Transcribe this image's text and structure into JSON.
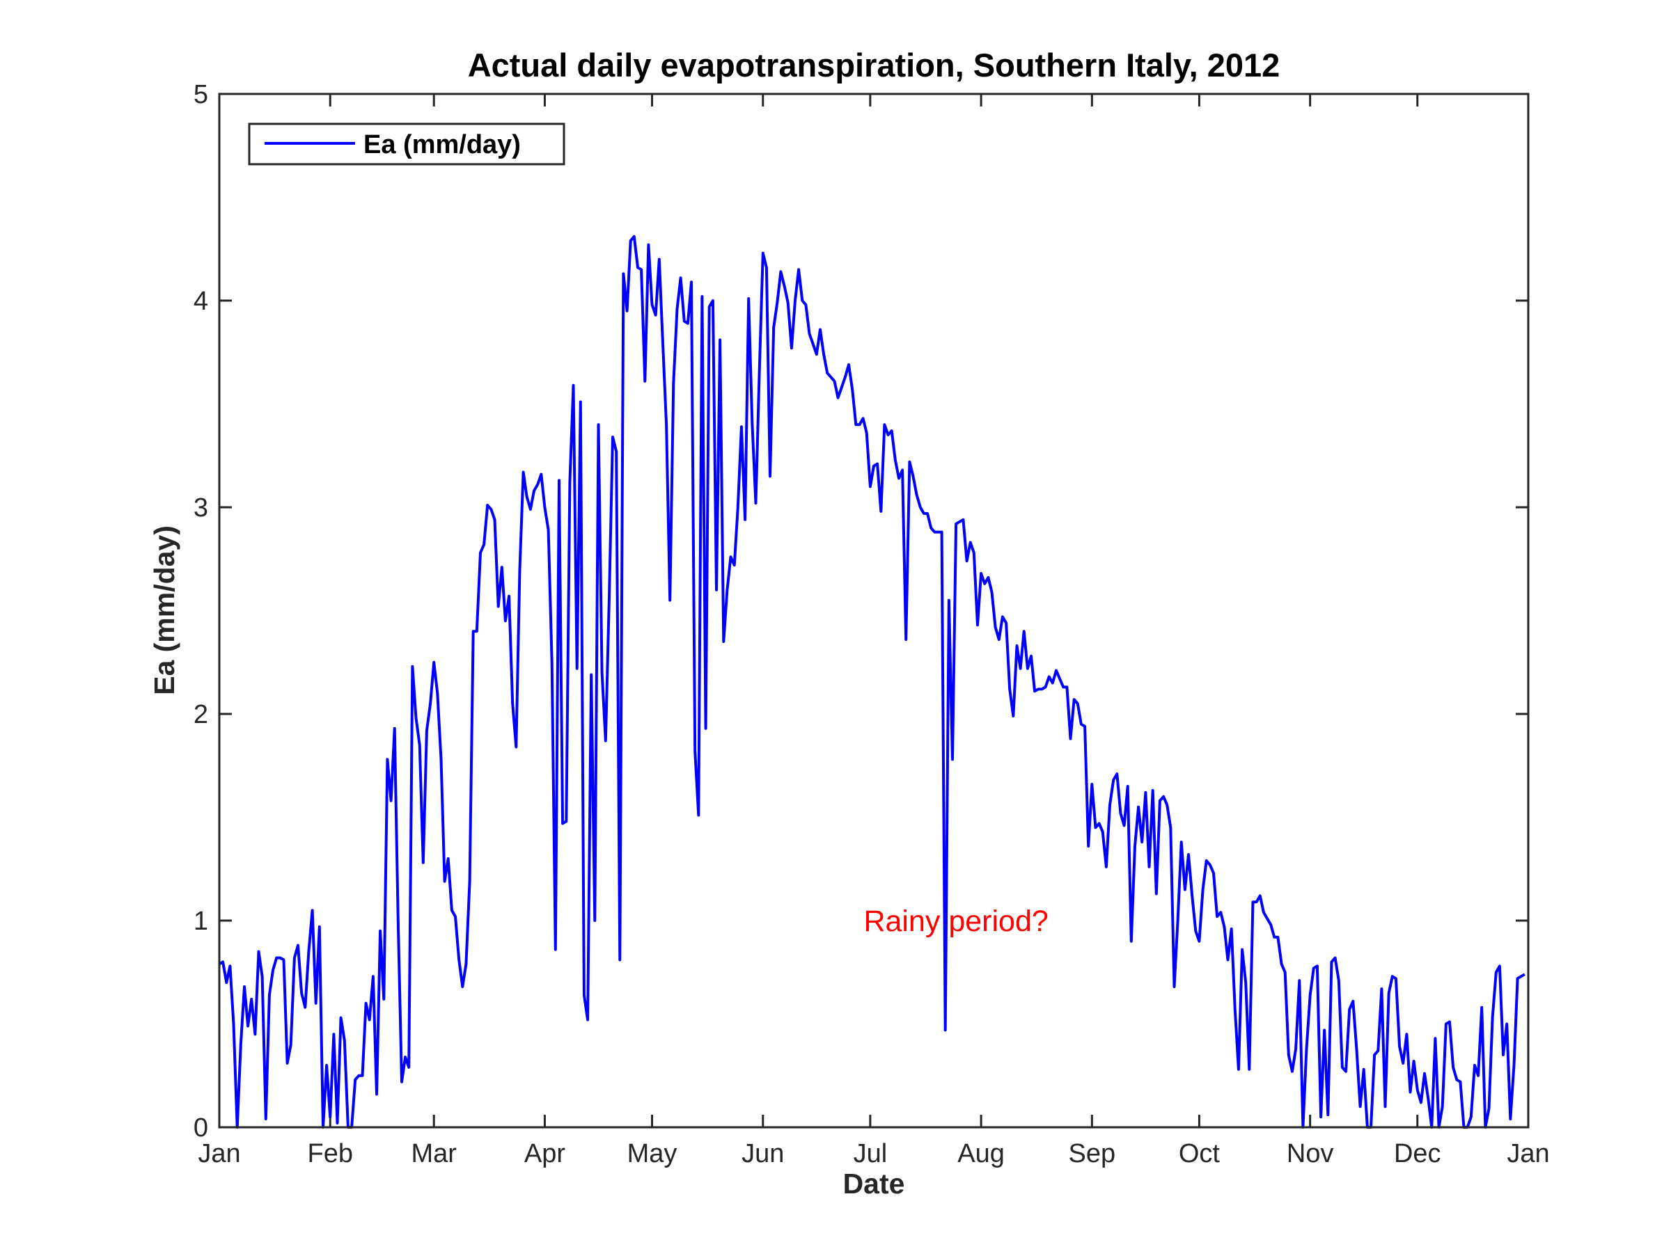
{
  "chart_data": {
    "type": "line",
    "title": "Actual daily evapotranspiration, Southern Italy, 2012",
    "xlabel": "Date",
    "ylabel": "Ea (mm/day)",
    "x_ticks": [
      "Jan",
      "Feb",
      "Mar",
      "Apr",
      "May",
      "Jun",
      "Jul",
      "Aug",
      "Sep",
      "Oct",
      "Nov",
      "Dec",
      "Jan"
    ],
    "x_tick_dates": [
      "2012-01-01",
      "2012-02-01",
      "2012-03-01",
      "2012-04-01",
      "2012-05-01",
      "2012-06-01",
      "2012-07-01",
      "2012-08-01",
      "2012-09-01",
      "2012-10-01",
      "2012-11-01",
      "2012-12-01",
      "2013-01-01"
    ],
    "xlim": [
      "2012-01-01",
      "2013-01-01"
    ],
    "y_ticks": [
      "0",
      "1",
      "2",
      "3",
      "4",
      "5"
    ],
    "y_tick_values": [
      0,
      1,
      2,
      3,
      4,
      5
    ],
    "ylim": [
      0,
      5
    ],
    "grid": false,
    "legend_position": "top-left",
    "series": [
      {
        "name": "Ea (mm/day)",
        "color": "#0000ff",
        "x_start": "2012-01-01",
        "x_step": "1 day",
        "values": [
          0.79,
          0.8,
          0.7,
          0.78,
          0.5,
          0.0,
          0.4,
          0.68,
          0.49,
          0.62,
          0.45,
          0.85,
          0.73,
          0.04,
          0.64,
          0.76,
          0.82,
          0.82,
          0.81,
          0.31,
          0.4,
          0.82,
          0.88,
          0.65,
          0.58,
          0.85,
          1.05,
          0.6,
          0.97,
          0.0,
          0.3,
          0.05,
          0.45,
          0.02,
          0.53,
          0.42,
          0.0,
          0.0,
          0.23,
          0.25,
          0.25,
          0.6,
          0.52,
          0.73,
          0.16,
          0.95,
          0.62,
          1.78,
          1.58,
          1.93,
          1.0,
          0.22,
          0.34,
          0.29,
          2.23,
          1.98,
          1.85,
          1.28,
          1.92,
          2.05,
          2.25,
          2.1,
          1.78,
          1.19,
          1.3,
          1.05,
          1.02,
          0.81,
          0.68,
          0.79,
          1.19,
          2.4,
          2.4,
          2.78,
          2.82,
          3.01,
          2.99,
          2.94,
          2.52,
          2.71,
          2.45,
          2.57,
          2.05,
          1.84,
          2.7,
          3.17,
          3.05,
          2.99,
          3.08,
          3.11,
          3.16,
          3.0,
          2.89,
          2.25,
          0.86,
          3.13,
          1.47,
          1.48,
          3.12,
          3.59,
          2.22,
          3.51,
          0.64,
          0.52,
          2.19,
          1.0,
          3.4,
          2.2,
          1.87,
          2.55,
          3.34,
          3.27,
          0.81,
          4.13,
          3.95,
          4.29,
          4.31,
          4.16,
          4.15,
          3.61,
          4.27,
          3.98,
          3.93,
          4.2,
          3.8,
          3.4,
          2.55,
          3.6,
          3.96,
          4.11,
          3.9,
          3.89,
          4.09,
          1.82,
          1.51,
          4.02,
          1.93,
          3.97,
          4.0,
          2.6,
          3.81,
          2.35,
          2.6,
          2.76,
          2.72,
          3.0,
          3.39,
          2.94,
          4.01,
          3.4,
          3.02,
          3.65,
          4.23,
          4.16,
          3.15,
          3.87,
          3.99,
          4.14,
          4.07,
          3.99,
          3.77,
          4.0,
          4.15,
          4.0,
          3.98,
          3.84,
          3.79,
          3.74,
          3.86,
          3.74,
          3.65,
          3.63,
          3.61,
          3.53,
          3.58,
          3.63,
          3.69,
          3.57,
          3.4,
          3.4,
          3.43,
          3.36,
          3.1,
          3.2,
          3.21,
          2.98,
          3.4,
          3.35,
          3.37,
          3.23,
          3.14,
          3.18,
          2.36,
          3.22,
          3.15,
          3.06,
          3.0,
          2.97,
          2.97,
          2.9,
          2.88,
          2.88,
          2.88,
          0.47,
          2.55,
          1.78,
          2.92,
          2.93,
          2.94,
          2.74,
          2.83,
          2.78,
          2.43,
          2.68,
          2.63,
          2.66,
          2.59,
          2.42,
          2.36,
          2.47,
          2.44,
          2.12,
          1.99,
          2.33,
          2.22,
          2.4,
          2.22,
          2.28,
          2.11,
          2.12,
          2.12,
          2.13,
          2.18,
          2.15,
          2.21,
          2.17,
          2.13,
          2.13,
          1.88,
          2.07,
          2.05,
          1.95,
          1.94,
          1.36,
          1.66,
          1.45,
          1.47,
          1.43,
          1.26,
          1.56,
          1.68,
          1.71,
          1.52,
          1.46,
          1.65,
          0.9,
          1.36,
          1.55,
          1.38,
          1.62,
          1.26,
          1.63,
          1.13,
          1.58,
          1.6,
          1.56,
          1.45,
          0.68,
          1.0,
          1.38,
          1.15,
          1.32,
          1.12,
          0.95,
          0.9,
          1.15,
          1.29,
          1.27,
          1.23,
          1.02,
          1.04,
          0.97,
          0.81,
          0.96,
          0.57,
          0.28,
          0.86,
          0.7,
          0.28,
          1.09,
          1.09,
          1.12,
          1.04,
          1.01,
          0.98,
          0.92,
          0.92,
          0.79,
          0.75,
          0.35,
          0.27,
          0.38,
          0.71,
          0.0,
          0.38,
          0.64,
          0.77,
          0.78,
          0.05,
          0.47,
          0.06,
          0.8,
          0.82,
          0.71,
          0.29,
          0.27,
          0.57,
          0.61,
          0.38,
          0.1,
          0.28,
          0.0,
          0.0,
          0.35,
          0.37,
          0.67,
          0.1,
          0.65,
          0.73,
          0.72,
          0.39,
          0.31,
          0.45,
          0.17,
          0.32,
          0.18,
          0.12,
          0.26,
          0.14,
          0.0,
          0.43,
          0.0,
          0.1,
          0.5,
          0.51,
          0.29,
          0.23,
          0.22,
          0.0,
          0.0,
          0.05,
          0.3,
          0.25,
          0.58,
          0.0,
          0.09,
          0.53,
          0.75,
          0.78,
          0.35,
          0.5,
          0.04,
          0.3,
          0.72,
          0.73,
          0.74
        ]
      }
    ],
    "annotations": [
      {
        "text": "Rainy period?",
        "x": "2012-07-25",
        "y": 1.0,
        "color": "#ff0000"
      }
    ]
  }
}
